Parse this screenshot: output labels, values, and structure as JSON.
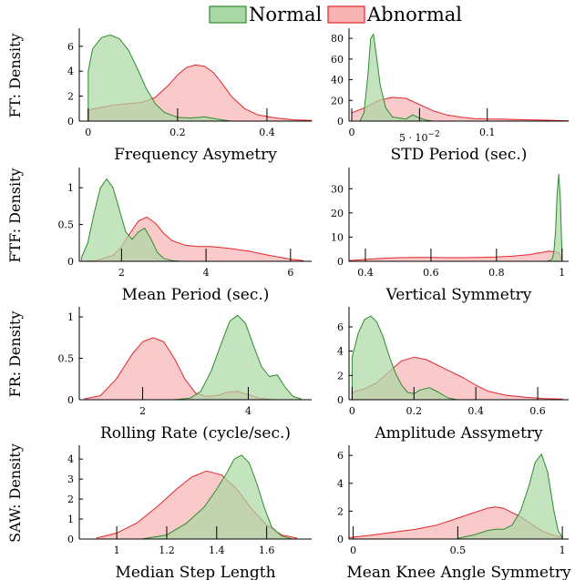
{
  "legend": {
    "normal_label": "Normal",
    "abnormal_label": "Abnormal"
  },
  "colors": {
    "normal_fill": "#a9d8a4",
    "normal_stroke": "#2e8b2e",
    "abnormal_fill": "#f8b4b4",
    "abnormal_stroke": "#e3262a"
  },
  "row_labels": [
    "FT: Density",
    "FTF: Density",
    "FR: Density",
    "SAW: Density"
  ],
  "chart_data": [
    {
      "type": "area",
      "xlabel": "Frequency Asymetry",
      "ylabel": "FT: Density",
      "xlim": [
        -0.02,
        0.5
      ],
      "ylim": [
        0,
        7.3
      ],
      "xticks": [
        0,
        0.2,
        0.4
      ],
      "xticklabels": [
        "0",
        "0.2",
        "0.4"
      ],
      "yticks": [
        0,
        2,
        4,
        6
      ],
      "yticklabels": [
        "0",
        "2",
        "4",
        "6"
      ],
      "series": [
        {
          "key": "normal",
          "x": [
            0,
            0.01,
            0.03,
            0.05,
            0.07,
            0.09,
            0.11,
            0.13,
            0.15,
            0.17,
            0.2,
            0.23,
            0.26,
            0.29,
            0.32
          ],
          "y": [
            4.0,
            5.8,
            6.7,
            6.9,
            6.6,
            5.7,
            4.2,
            2.6,
            1.4,
            0.7,
            0.3,
            0.25,
            0.35,
            0.15,
            0.0
          ]
        },
        {
          "key": "abnormal",
          "x": [
            0,
            0.03,
            0.06,
            0.09,
            0.12,
            0.15,
            0.18,
            0.2,
            0.22,
            0.24,
            0.26,
            0.28,
            0.3,
            0.32,
            0.35,
            0.38,
            0.42,
            0.46,
            0.5
          ],
          "y": [
            0.9,
            1.1,
            1.3,
            1.4,
            1.5,
            1.9,
            2.9,
            3.7,
            4.3,
            4.5,
            4.4,
            3.9,
            3.0,
            2.0,
            1.0,
            0.5,
            0.25,
            0.1,
            0.05
          ]
        }
      ]
    },
    {
      "type": "area",
      "xlabel": "STD Period (sec.)",
      "ylabel": "",
      "xlim": [
        -0.002,
        0.16
      ],
      "ylim": [
        0,
        88
      ],
      "xticks": [
        0,
        0.05,
        0.1
      ],
      "xticklabels": [
        "0",
        "",
        "0.1"
      ],
      "x_offset_label": "5 · 10^-2",
      "yticks": [
        0,
        20,
        40,
        60,
        80
      ],
      "yticklabels": [
        "0",
        "20",
        "40",
        "60",
        "80"
      ],
      "series": [
        {
          "key": "normal",
          "x": [
            0.006,
            0.009,
            0.012,
            0.014,
            0.016,
            0.018,
            0.021,
            0.025,
            0.03,
            0.035,
            0.04,
            0.045,
            0.05,
            0.055,
            0.06
          ],
          "y": [
            0,
            8,
            45,
            80,
            84,
            65,
            35,
            13,
            4,
            3,
            2,
            6,
            3,
            1,
            0
          ]
        },
        {
          "key": "abnormal",
          "x": [
            0,
            0.01,
            0.02,
            0.03,
            0.04,
            0.05,
            0.06,
            0.07,
            0.08,
            0.09,
            0.1,
            0.11,
            0.12,
            0.13,
            0.14,
            0.15,
            0.16
          ],
          "y": [
            8,
            13,
            20,
            23,
            22,
            16,
            10,
            6,
            4,
            2.5,
            2,
            2,
            1.5,
            1.2,
            1,
            0.6,
            0.3
          ]
        }
      ]
    },
    {
      "type": "area",
      "xlabel": "Mean Period (sec.)",
      "ylabel": "FTF: Density",
      "xlim": [
        1,
        6.5
      ],
      "ylim": [
        0,
        1.25
      ],
      "xticks": [
        2,
        4,
        6
      ],
      "xticklabels": [
        "2",
        "4",
        "6"
      ],
      "yticks": [
        0,
        0.5,
        1
      ],
      "yticklabels": [
        "0",
        "0.5",
        "1"
      ],
      "series": [
        {
          "key": "normal",
          "x": [
            1.05,
            1.2,
            1.35,
            1.5,
            1.65,
            1.8,
            1.95,
            2.1,
            2.25,
            2.4,
            2.55,
            2.7,
            2.85,
            3.0,
            3.2,
            3.4
          ],
          "y": [
            0.05,
            0.25,
            0.65,
            1.0,
            1.12,
            1.0,
            0.7,
            0.4,
            0.3,
            0.4,
            0.45,
            0.3,
            0.12,
            0.04,
            0.01,
            0
          ]
        },
        {
          "key": "abnormal",
          "x": [
            1.0,
            1.4,
            1.8,
            2.0,
            2.2,
            2.4,
            2.6,
            2.8,
            3.0,
            3.2,
            3.5,
            3.8,
            4.1,
            4.5,
            5.0,
            5.5,
            6.0,
            6.3
          ],
          "y": [
            0.0,
            0.01,
            0.08,
            0.2,
            0.38,
            0.55,
            0.6,
            0.52,
            0.38,
            0.28,
            0.22,
            0.2,
            0.2,
            0.18,
            0.14,
            0.08,
            0.03,
            0.01
          ]
        }
      ]
    },
    {
      "type": "area",
      "xlabel": "Vertical Symmetry",
      "ylabel": "",
      "xlim": [
        0.35,
        1.02
      ],
      "ylim": [
        0,
        38
      ],
      "xticks": [
        0.4,
        0.6,
        0.8,
        1
      ],
      "xticklabels": [
        "0.4",
        "0.6",
        "0.8",
        "1"
      ],
      "yticks": [
        0,
        10,
        20,
        30
      ],
      "yticklabels": [
        "0",
        "10",
        "20",
        "30"
      ],
      "series": [
        {
          "key": "normal",
          "x": [
            0.95,
            0.96,
            0.97,
            0.975,
            0.98,
            0.985,
            0.99,
            0.995,
            1.0
          ],
          "y": [
            0,
            0.2,
            1,
            4,
            12,
            28,
            36,
            25,
            2
          ]
        },
        {
          "key": "abnormal",
          "x": [
            0.35,
            0.4,
            0.45,
            0.5,
            0.55,
            0.6,
            0.65,
            0.7,
            0.75,
            0.8,
            0.85,
            0.9,
            0.93,
            0.96,
            0.99,
            1.0
          ],
          "y": [
            0.3,
            0.8,
            1.2,
            1.5,
            1.6,
            1.6,
            1.5,
            1.5,
            1.6,
            1.8,
            2.2,
            2.8,
            3.5,
            4.2,
            3.6,
            0.3
          ]
        }
      ]
    },
    {
      "type": "area",
      "xlabel": "Rolling Rate (cycle/sec.)",
      "ylabel": "FR: Density",
      "xlim": [
        0.8,
        5.2
      ],
      "ylim": [
        0,
        1.1
      ],
      "xticks": [
        2,
        4
      ],
      "xticklabels": [
        "2",
        "4"
      ],
      "yticks": [
        0,
        0.5,
        1
      ],
      "yticklabels": [
        "0",
        "0.5",
        "1"
      ],
      "series": [
        {
          "key": "normal",
          "x": [
            2.6,
            2.9,
            3.1,
            3.3,
            3.5,
            3.65,
            3.8,
            3.95,
            4.1,
            4.25,
            4.4,
            4.55,
            4.7,
            4.85,
            5.0
          ],
          "y": [
            0,
            0.02,
            0.1,
            0.35,
            0.7,
            0.95,
            1.02,
            0.92,
            0.65,
            0.4,
            0.28,
            0.3,
            0.15,
            0.04,
            0.01
          ]
        },
        {
          "key": "abnormal",
          "x": [
            0.9,
            1.2,
            1.5,
            1.8,
            2.0,
            2.2,
            2.4,
            2.6,
            2.8,
            3.0,
            3.2,
            3.4,
            3.6,
            3.8,
            4.0,
            4.2,
            4.5
          ],
          "y": [
            0.01,
            0.05,
            0.25,
            0.55,
            0.7,
            0.75,
            0.7,
            0.5,
            0.25,
            0.08,
            0.04,
            0.05,
            0.09,
            0.1,
            0.06,
            0.02,
            0.0
          ]
        }
      ]
    },
    {
      "type": "area",
      "xlabel": "Amplitude Assymetry",
      "ylabel": "",
      "xlim": [
        -0.01,
        0.7
      ],
      "ylim": [
        0,
        7.5
      ],
      "xticks": [
        0,
        0.2,
        0.4,
        0.6
      ],
      "xticklabels": [
        "0",
        "0.2",
        "0.4",
        "0.6"
      ],
      "yticks": [
        0,
        2,
        4,
        6
      ],
      "yticklabels": [
        "0",
        "2",
        "4",
        "6"
      ],
      "series": [
        {
          "key": "normal",
          "x": [
            0,
            0.02,
            0.04,
            0.06,
            0.08,
            0.1,
            0.12,
            0.14,
            0.16,
            0.18,
            0.2,
            0.22,
            0.25,
            0.28,
            0.31,
            0.34
          ],
          "y": [
            3.5,
            5.5,
            6.6,
            6.9,
            6.4,
            5.2,
            3.6,
            2.2,
            1.2,
            0.6,
            0.5,
            0.8,
            1.0,
            0.6,
            0.15,
            0
          ]
        },
        {
          "key": "abnormal",
          "x": [
            0,
            0.04,
            0.08,
            0.12,
            0.16,
            0.2,
            0.24,
            0.28,
            0.32,
            0.36,
            0.4,
            0.44,
            0.5,
            0.56,
            0.62,
            0.68
          ],
          "y": [
            0.6,
            0.9,
            1.4,
            2.3,
            3.2,
            3.5,
            3.3,
            2.8,
            2.3,
            1.8,
            1.2,
            0.7,
            0.35,
            0.2,
            0.1,
            0.05
          ]
        }
      ]
    },
    {
      "type": "area",
      "xlabel": "Median Step Length",
      "ylabel": "SAW: Density",
      "xlim": [
        0.85,
        1.78
      ],
      "ylim": [
        0,
        4.6
      ],
      "xticks": [
        1,
        1.2,
        1.4,
        1.6
      ],
      "xticklabels": [
        "1",
        "1.2",
        "1.4",
        "1.6"
      ],
      "yticks": [
        0,
        1,
        2,
        3,
        4
      ],
      "yticklabels": [
        "0",
        "1",
        "2",
        "3",
        "4"
      ],
      "series": [
        {
          "key": "normal",
          "x": [
            1.1,
            1.2,
            1.28,
            1.35,
            1.4,
            1.44,
            1.47,
            1.5,
            1.53,
            1.56,
            1.59,
            1.62,
            1.66,
            1.7
          ],
          "y": [
            0,
            0.2,
            0.8,
            1.6,
            2.5,
            3.3,
            4.0,
            4.2,
            3.8,
            2.8,
            1.6,
            0.6,
            0.15,
            0.01
          ]
        },
        {
          "key": "abnormal",
          "x": [
            0.92,
            1.0,
            1.08,
            1.16,
            1.24,
            1.3,
            1.36,
            1.42,
            1.48,
            1.54,
            1.6,
            1.66,
            1.72
          ],
          "y": [
            0.05,
            0.3,
            0.8,
            1.6,
            2.5,
            3.1,
            3.4,
            3.2,
            2.5,
            1.5,
            0.7,
            0.2,
            0.05
          ]
        }
      ]
    },
    {
      "type": "area",
      "xlabel": "Mean Knee Angle Symmetry",
      "ylabel": "",
      "xlim": [
        -0.02,
        1.03
      ],
      "ylim": [
        0,
        6.6
      ],
      "xticks": [
        0,
        0.5,
        1
      ],
      "xticklabels": [
        "0",
        "0.5",
        "1"
      ],
      "yticks": [
        0,
        2,
        4,
        6
      ],
      "yticklabels": [
        "0",
        "2",
        "4",
        "6"
      ],
      "series": [
        {
          "key": "normal",
          "x": [
            0.5,
            0.58,
            0.64,
            0.68,
            0.72,
            0.76,
            0.8,
            0.84,
            0.87,
            0.9,
            0.93,
            0.96,
            0.98,
            1.0
          ],
          "y": [
            0.05,
            0.3,
            0.6,
            0.7,
            0.7,
            1.0,
            2.0,
            3.8,
            5.5,
            6.1,
            4.8,
            2.0,
            0.6,
            0.1
          ]
        },
        {
          "key": "abnormal",
          "x": [
            -0.02,
            0.1,
            0.2,
            0.3,
            0.4,
            0.5,
            0.58,
            0.64,
            0.68,
            0.72,
            0.76,
            0.8,
            0.85,
            0.9,
            0.95,
            1.0
          ],
          "y": [
            0.1,
            0.3,
            0.5,
            0.7,
            1.0,
            1.5,
            1.9,
            2.2,
            2.3,
            2.2,
            1.9,
            1.6,
            1.1,
            0.6,
            0.3,
            0.1
          ]
        }
      ]
    }
  ]
}
